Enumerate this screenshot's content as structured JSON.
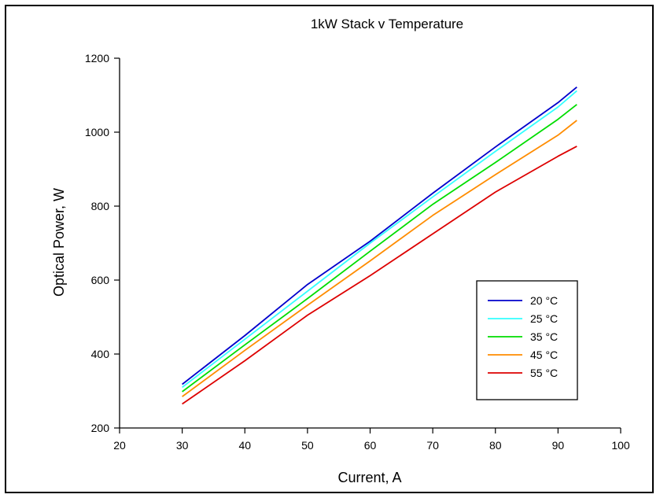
{
  "chart_data": {
    "type": "line",
    "title": "1kW Stack v Temperature",
    "xlabel": "Current, A",
    "ylabel": "Optical Power, W",
    "xlim": [
      20,
      100
    ],
    "ylim": [
      200,
      1200
    ],
    "xticks": [
      20,
      30,
      40,
      50,
      60,
      70,
      80,
      90,
      100
    ],
    "yticks": [
      200,
      400,
      600,
      800,
      1000,
      1200
    ],
    "grid": false,
    "legend_placement": "bottom-right",
    "x": [
      30,
      40,
      50,
      60,
      70,
      80,
      90,
      93
    ],
    "series": [
      {
        "name": "20 °C",
        "color": "#0000cc",
        "values": [
          318,
          450,
          588,
          705,
          835,
          960,
          1080,
          1122
        ]
      },
      {
        "name": "25 °C",
        "color": "#33ffff",
        "values": [
          310,
          440,
          570,
          700,
          825,
          948,
          1068,
          1112
        ]
      },
      {
        "name": "35 °C",
        "color": "#00dd00",
        "values": [
          298,
          425,
          550,
          678,
          805,
          918,
          1035,
          1075
        ]
      },
      {
        "name": "45 °C",
        "color": "#ff8c00",
        "values": [
          285,
          410,
          532,
          652,
          775,
          885,
          992,
          1032
        ]
      },
      {
        "name": "55 °C",
        "color": "#dd0000",
        "values": [
          265,
          382,
          505,
          612,
          725,
          838,
          935,
          962
        ]
      }
    ]
  }
}
